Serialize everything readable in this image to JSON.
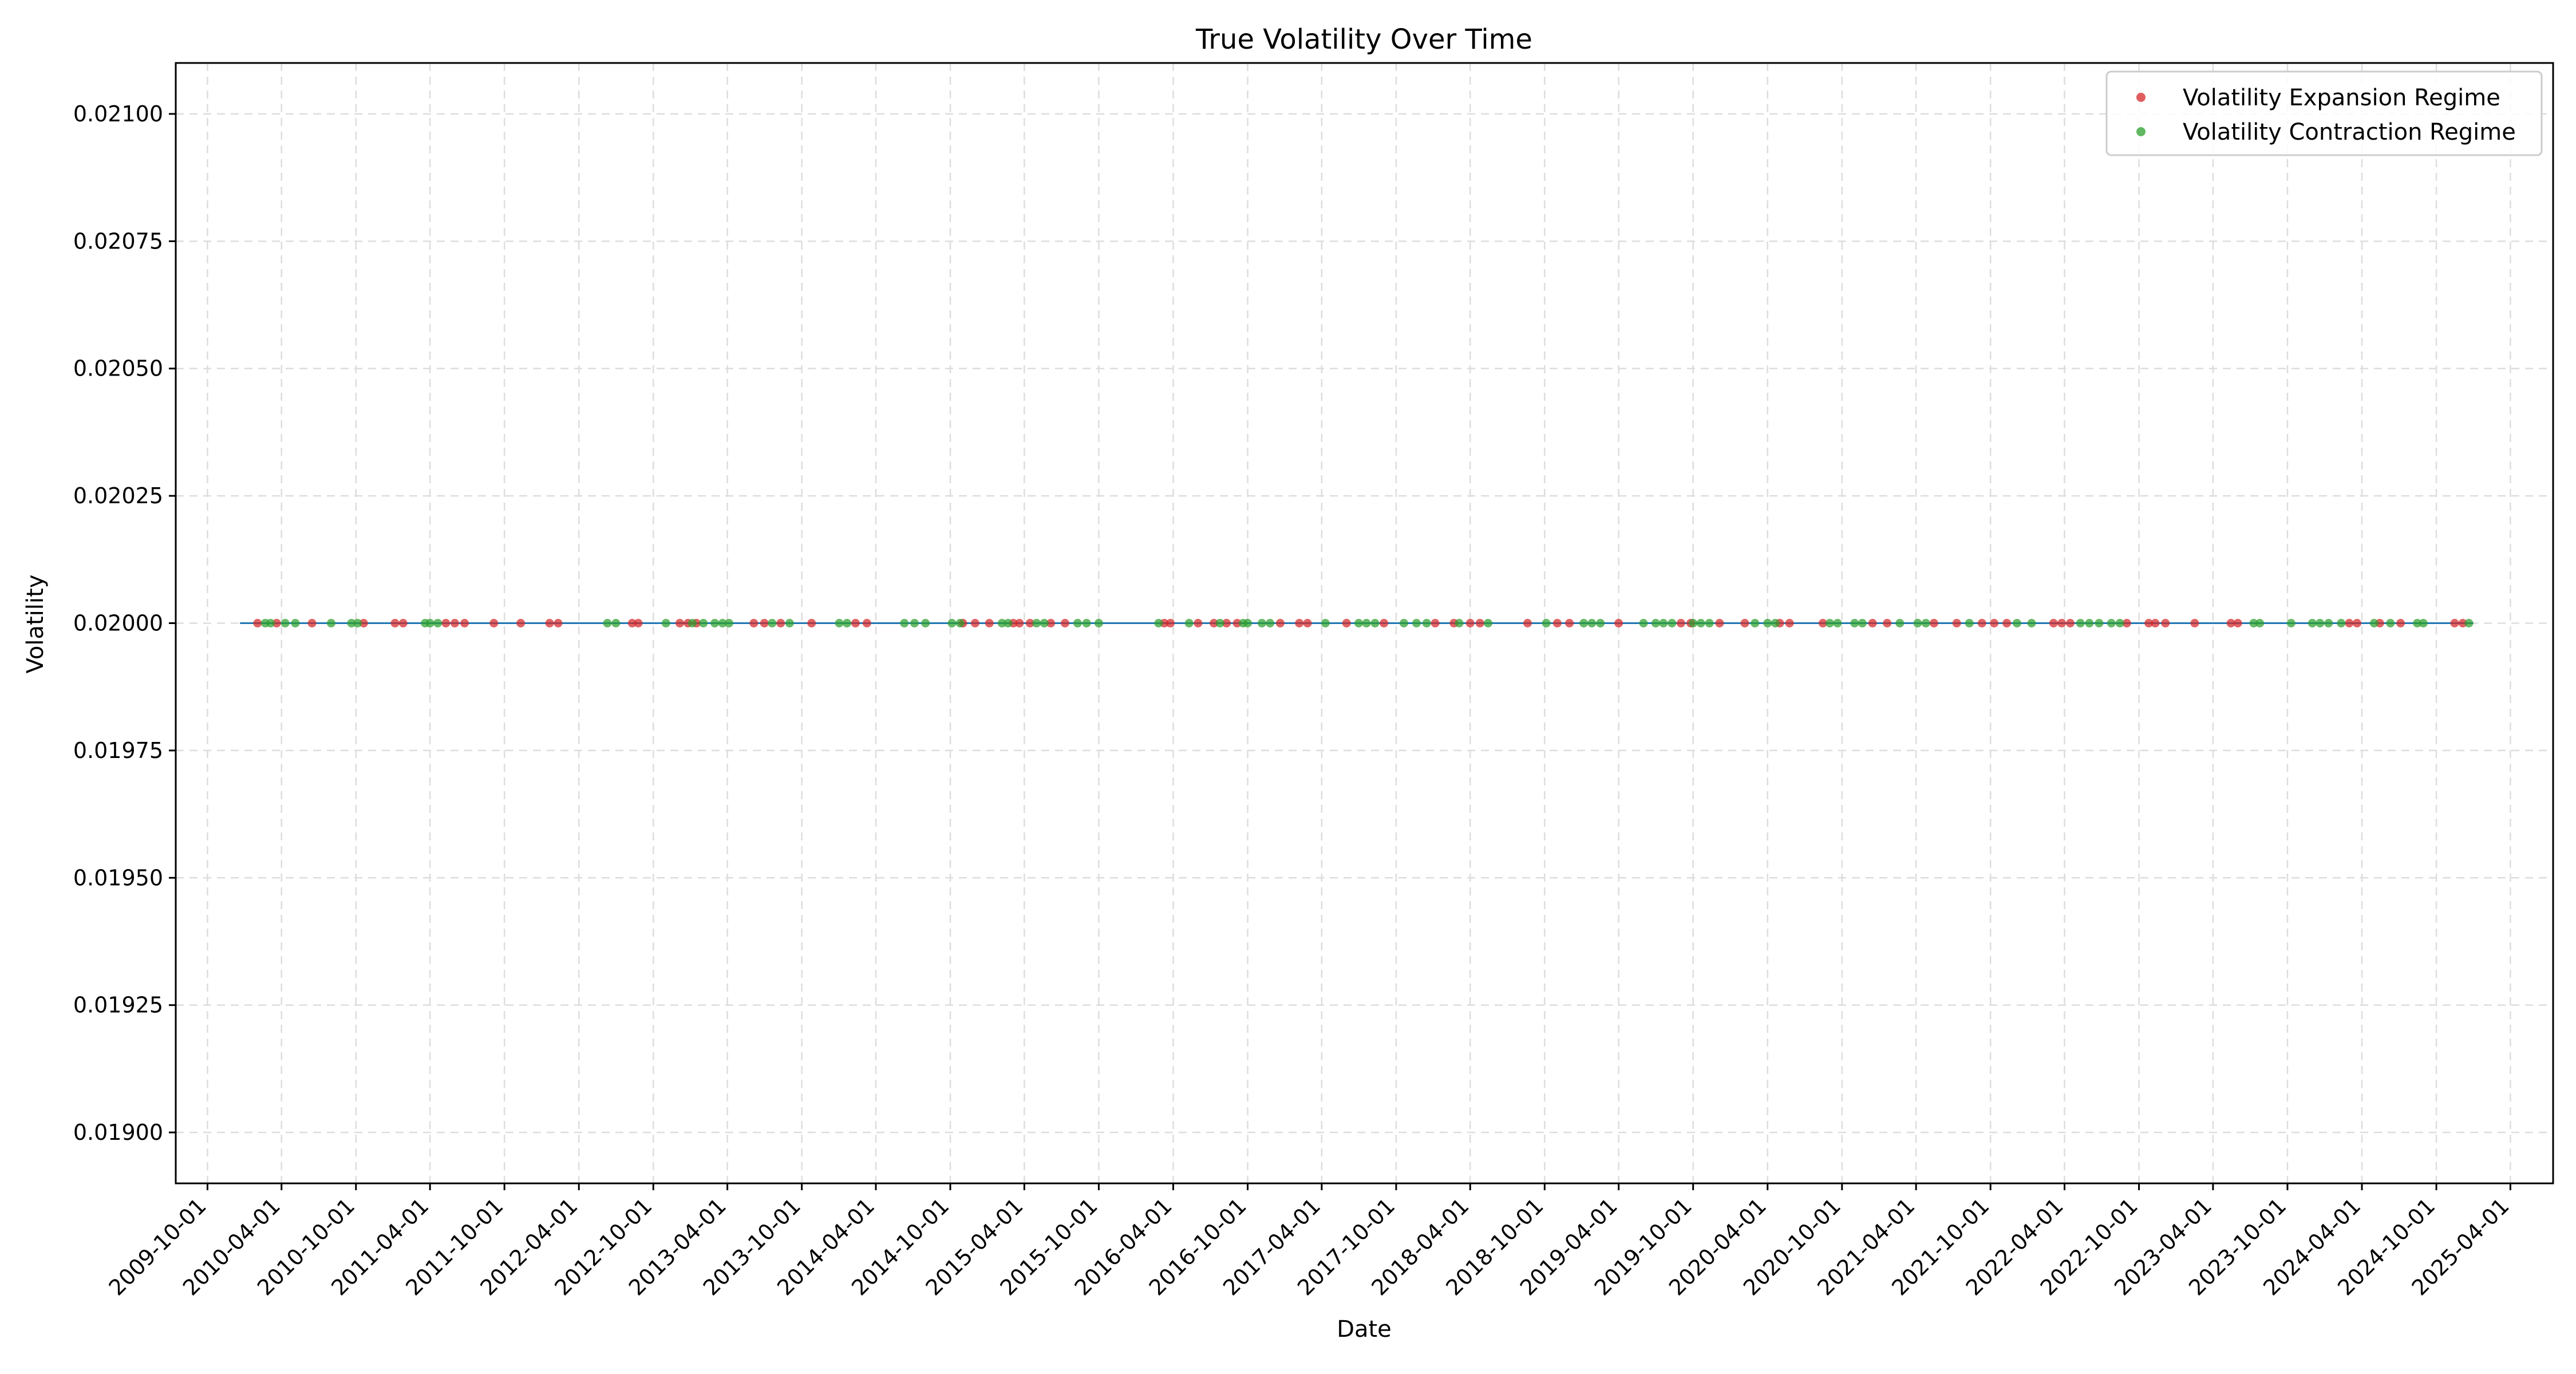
{
  "chart_data": {
    "type": "scatter",
    "title": "True Volatility Over Time",
    "xlabel": "Date",
    "ylabel": "Volatility",
    "xlim": [
      "2009-07-15",
      "2025-07-15"
    ],
    "ylim": [
      0.0189,
      0.0211
    ],
    "grid": true,
    "legend_position": "top-right",
    "x_ticks": [
      "2009-10-01",
      "2010-04-01",
      "2010-10-01",
      "2011-04-01",
      "2011-10-01",
      "2012-04-01",
      "2012-10-01",
      "2013-04-01",
      "2013-10-01",
      "2014-04-01",
      "2014-10-01",
      "2015-04-01",
      "2015-10-01",
      "2016-04-01",
      "2016-10-01",
      "2017-04-01",
      "2017-10-01",
      "2018-04-01",
      "2018-10-01",
      "2019-04-01",
      "2019-10-01",
      "2020-04-01",
      "2020-10-01",
      "2021-04-01",
      "2021-10-01",
      "2022-04-01",
      "2022-10-01",
      "2023-04-01",
      "2023-10-01",
      "2024-04-01",
      "2024-10-01",
      "2025-04-01"
    ],
    "y_ticks": [
      "0.01900",
      "0.01925",
      "0.01950",
      "0.01975",
      "0.02000",
      "0.02025",
      "0.02050",
      "0.02075",
      "0.02100"
    ],
    "line": {
      "name": "True Volatility",
      "color": "#1f77b4",
      "x": [
        "2009-12-20",
        "2024-12-31"
      ],
      "y": [
        0.02,
        0.02
      ]
    },
    "series": [
      {
        "name": "Volatility Expansion Regime",
        "color": "#d62728",
        "y": 0.02,
        "x": [
          "2010-02-01",
          "2010-03-20",
          "2010-06-15",
          "2010-10-20",
          "2011-01-05",
          "2011-01-25",
          "2011-05-10",
          "2011-06-01",
          "2011-06-25",
          "2011-09-05",
          "2011-11-10",
          "2012-01-20",
          "2012-02-10",
          "2012-08-10",
          "2012-08-25",
          "2012-12-05",
          "2012-12-25",
          "2013-01-15",
          "2013-06-05",
          "2013-07-01",
          "2013-08-10",
          "2013-10-25",
          "2014-02-10",
          "2014-03-10",
          "2014-11-01",
          "2014-12-01",
          "2015-01-05",
          "2015-03-05",
          "2015-03-20",
          "2015-04-15",
          "2015-06-05",
          "2015-07-10",
          "2016-03-10",
          "2016-03-25",
          "2016-06-01",
          "2016-07-10",
          "2016-08-10",
          "2016-09-05",
          "2016-12-20",
          "2017-02-05",
          "2017-02-25",
          "2017-06-01",
          "2017-09-01",
          "2018-01-05",
          "2018-02-20",
          "2018-04-01",
          "2018-04-25",
          "2018-08-20",
          "2018-11-01",
          "2018-12-01",
          "2019-04-01",
          "2019-09-01",
          "2019-09-25",
          "2019-12-05",
          "2020-02-05",
          "2020-05-01",
          "2020-05-25",
          "2020-08-15",
          "2020-12-15",
          "2021-01-20",
          "2021-05-15",
          "2021-07-10",
          "2021-09-10",
          "2021-10-10",
          "2021-11-10",
          "2022-03-05",
          "2022-03-25",
          "2022-04-15",
          "2022-09-01",
          "2022-10-25",
          "2022-11-10",
          "2022-12-05",
          "2023-02-15",
          "2023-05-15",
          "2023-06-01",
          "2024-03-01",
          "2024-03-20",
          "2024-05-15",
          "2024-07-05",
          "2024-11-15",
          "2024-12-05"
        ]
      },
      {
        "name": "Volatility Contraction Regime",
        "color": "#2ca02c",
        "y": 0.02,
        "x": [
          "2010-02-20",
          "2010-03-05",
          "2010-04-10",
          "2010-05-05",
          "2010-08-01",
          "2010-09-20",
          "2010-10-05",
          "2011-03-20",
          "2011-04-01",
          "2011-04-20",
          "2012-06-10",
          "2012-07-01",
          "2012-11-01",
          "2013-01-05",
          "2013-02-01",
          "2013-03-01",
          "2013-03-20",
          "2013-04-05",
          "2013-07-20",
          "2013-09-01",
          "2014-01-01",
          "2014-01-20",
          "2014-06-10",
          "2014-07-05",
          "2014-08-01",
          "2014-10-05",
          "2014-10-25",
          "2015-02-05",
          "2015-02-20",
          "2015-05-01",
          "2015-05-20",
          "2015-08-10",
          "2015-09-01",
          "2015-10-01",
          "2016-02-25",
          "2016-05-10",
          "2016-07-25",
          "2016-09-20",
          "2016-10-01",
          "2016-11-05",
          "2016-11-25",
          "2017-04-10",
          "2017-07-01",
          "2017-07-20",
          "2017-08-10",
          "2017-10-20",
          "2017-11-20",
          "2017-12-15",
          "2018-03-05",
          "2018-05-15",
          "2018-10-05",
          "2019-01-05",
          "2019-01-25",
          "2019-02-15",
          "2019-06-01",
          "2019-07-01",
          "2019-07-20",
          "2019-08-10",
          "2019-10-01",
          "2019-10-20",
          "2019-11-10",
          "2020-03-01",
          "2020-04-01",
          "2020-04-20",
          "2020-09-01",
          "2020-09-20",
          "2020-11-01",
          "2020-11-20",
          "2021-02-20",
          "2021-04-05",
          "2021-04-25",
          "2021-08-10",
          "2021-12-05",
          "2022-01-10",
          "2022-05-10",
          "2022-06-01",
          "2022-06-25",
          "2022-07-25",
          "2022-08-15",
          "2023-07-10",
          "2023-07-25",
          "2023-10-10",
          "2023-12-01",
          "2023-12-20",
          "2024-01-10",
          "2024-02-10",
          "2024-05-01",
          "2024-06-10",
          "2024-08-15",
          "2024-08-30",
          "2024-12-20"
        ]
      }
    ]
  }
}
